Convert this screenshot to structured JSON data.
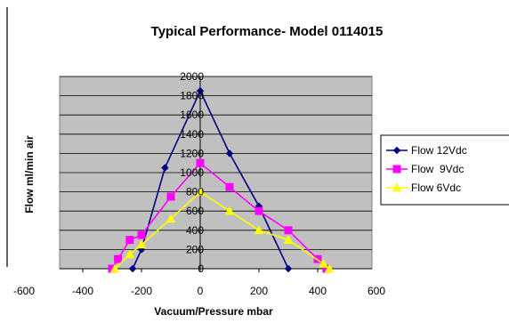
{
  "chart_data": {
    "type": "line",
    "title": "Typical Performance- Model 0114015",
    "xlabel": "Vacuum/Pressure mbar",
    "ylabel": "Flow ml/min air",
    "xlim": [
      -600,
      600
    ],
    "ylim": [
      0,
      2000
    ],
    "xticks": [
      "-600",
      "-400",
      "-200",
      "0",
      "200",
      "400",
      "600"
    ],
    "yticks": [
      "0",
      "200",
      "400",
      "600",
      "800",
      "1000",
      "1200",
      "1400",
      "1600",
      "1800",
      "2000"
    ],
    "grid": true,
    "plot_background": "#c0c0c0",
    "legend_position": "right",
    "series": [
      {
        "name": "Flow 12Vdc",
        "color": "#000080",
        "marker": "diamond",
        "points": [
          [
            -230,
            0
          ],
          [
            -200,
            200
          ],
          [
            -120,
            1050
          ],
          [
            0,
            1850
          ],
          [
            100,
            1200
          ],
          [
            200,
            650
          ],
          [
            300,
            0
          ]
        ]
      },
      {
        "name": "Flow  9Vdc",
        "color": "#ff00ff",
        "marker": "square",
        "points": [
          [
            -300,
            0
          ],
          [
            -280,
            100
          ],
          [
            -240,
            300
          ],
          [
            -200,
            350
          ],
          [
            -100,
            750
          ],
          [
            0,
            1100
          ],
          [
            100,
            850
          ],
          [
            200,
            600
          ],
          [
            300,
            400
          ],
          [
            400,
            100
          ],
          [
            430,
            0
          ]
        ]
      },
      {
        "name": "Flow 6Vdc",
        "color": "#ffff00",
        "marker": "triangle",
        "points": [
          [
            -290,
            0
          ],
          [
            -240,
            150
          ],
          [
            -200,
            250
          ],
          [
            -100,
            520
          ],
          [
            0,
            800
          ],
          [
            100,
            600
          ],
          [
            200,
            400
          ],
          [
            300,
            300
          ],
          [
            420,
            50
          ],
          [
            440,
            0
          ]
        ]
      }
    ]
  }
}
